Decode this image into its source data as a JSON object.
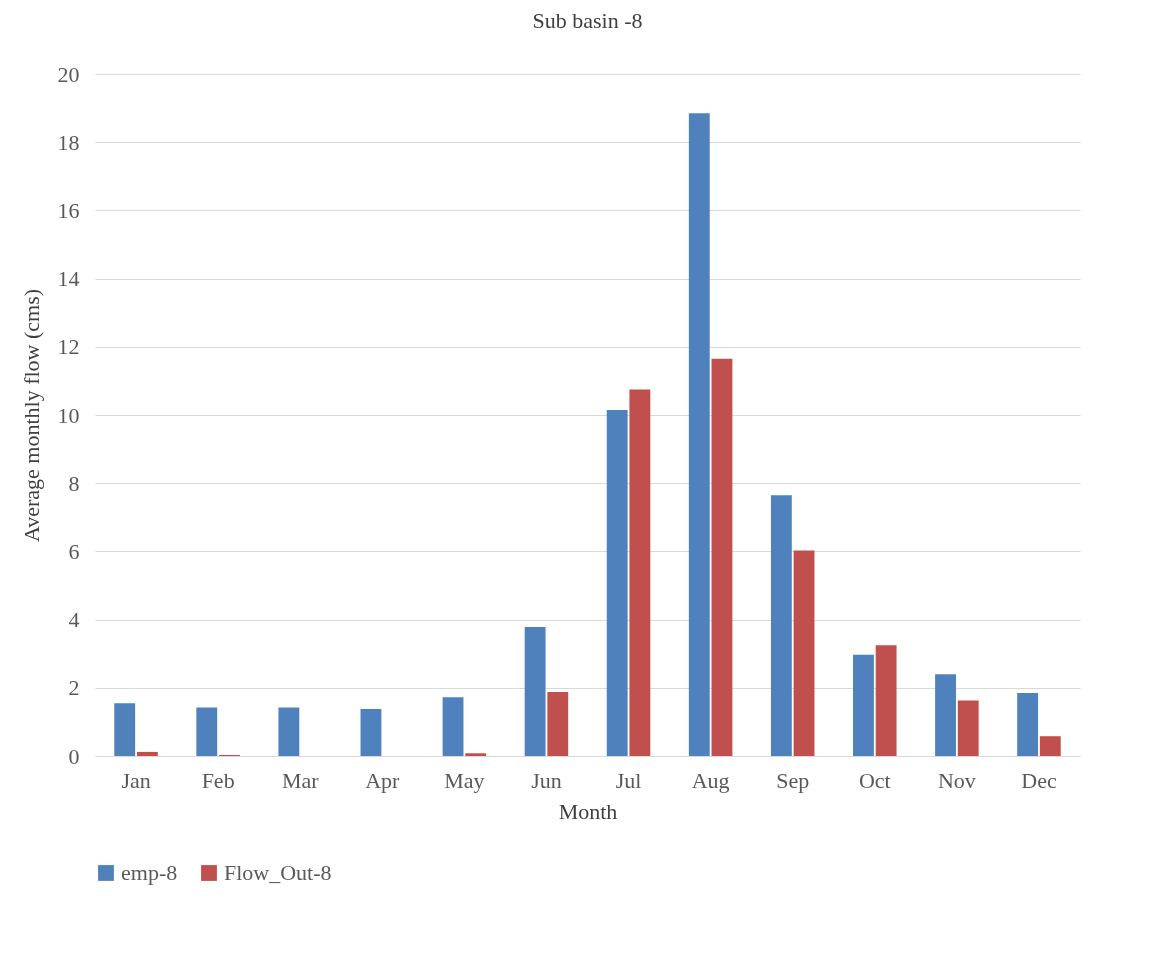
{
  "chart_data": {
    "type": "bar",
    "title": "Sub basin -8",
    "xlabel": "Month",
    "ylabel": "Average monthly flow (cms)",
    "categories": [
      "Jan",
      "Feb",
      "Mar",
      "Apr",
      "May",
      "Jun",
      "Jul",
      "Aug",
      "Sep",
      "Oct",
      "Nov",
      "Dec"
    ],
    "series": [
      {
        "name": "emp-8",
        "color": "#4f81bd",
        "values": [
          1.55,
          1.42,
          1.42,
          1.38,
          1.72,
          3.78,
          10.15,
          18.85,
          7.65,
          2.97,
          2.4,
          1.85
        ]
      },
      {
        "name": "Flow_Out-8",
        "color": "#c0504d",
        "values": [
          0.12,
          0.03,
          0,
          0,
          0.08,
          1.88,
          10.75,
          11.65,
          6.03,
          3.25,
          1.63,
          0.58
        ]
      }
    ],
    "ylim": [
      0,
      20
    ],
    "yticks": [
      0,
      2,
      4,
      6,
      8,
      10,
      12,
      14,
      16,
      18,
      20
    ],
    "grid": "y",
    "legend": "bottom"
  }
}
